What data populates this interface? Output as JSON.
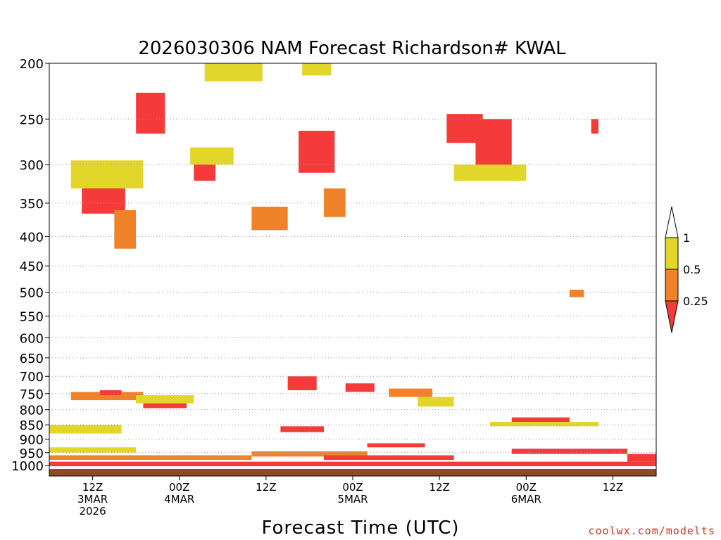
{
  "chart_data": {
    "type": "heatmap",
    "title": "2026030306 NAM Forecast Richardson# KWAL",
    "xlabel": "Forecast Time (UTC)",
    "ylabel": "",
    "y_axis": {
      "scale": "log-pressure",
      "range": [
        1000,
        200
      ],
      "ticks": [
        200,
        250,
        300,
        350,
        400,
        450,
        500,
        550,
        600,
        650,
        700,
        750,
        800,
        850,
        900,
        950,
        1000
      ],
      "tick_labels": [
        "200",
        "250",
        "300",
        "350",
        "400",
        "450",
        "500",
        "550",
        "600",
        "650",
        "700",
        "750",
        "800",
        "850",
        "900",
        "950",
        "1000"
      ]
    },
    "x_axis": {
      "units": "forecast hour",
      "range": [
        0,
        84
      ],
      "ticks": [
        {
          "hour": 6,
          "line1": "12Z",
          "line2": "3MAR",
          "line3": "2026"
        },
        {
          "hour": 18,
          "line1": "00Z",
          "line2": "4MAR",
          "line3": ""
        },
        {
          "hour": 30,
          "line1": "12Z",
          "line2": "",
          "line3": ""
        },
        {
          "hour": 42,
          "line1": "00Z",
          "line2": "5MAR",
          "line3": ""
        },
        {
          "hour": 54,
          "line1": "12Z",
          "line2": "",
          "line3": ""
        },
        {
          "hour": 66,
          "line1": "00Z",
          "line2": "6MAR",
          "line3": ""
        },
        {
          "hour": 78,
          "line1": "12Z",
          "line2": "",
          "line3": ""
        }
      ]
    },
    "grid": "dotted horizontal lines at pressure ticks",
    "colorbar": {
      "position": "right",
      "bins": [
        {
          "label_low": "0.5",
          "label_high": "1",
          "color": "#e2d62b"
        },
        {
          "label_low": "0.25",
          "label_high": "0.5",
          "color": "#f08229"
        },
        {
          "label_low": "",
          "label_high": "0.25",
          "color": "#f53a3a"
        }
      ],
      "labels": [
        "1",
        "0.5",
        "0.25"
      ]
    },
    "ground_color": "#8e4a25",
    "palette": {
      "yellow": "#e2d62b",
      "orange": "#f08229",
      "red": "#f53a3a"
    },
    "regions": [
      {
        "name": "low level stable layer",
        "value_class": "red",
        "h0": 0,
        "h1": 84,
        "p_top": 985,
        "p_bot": 1003
      },
      {
        "name": "upper jet 1",
        "value_class": "red",
        "h0": 4.5,
        "h1": 10.5,
        "p_top": 315,
        "p_bot": 365
      },
      {
        "name": "upper jet 1 rim",
        "value_class": "yellow",
        "h0": 3,
        "h1": 13,
        "p_top": 295,
        "p_bot": 330
      },
      {
        "name": "upper jet 1 mid",
        "value_class": "orange",
        "h0": 9,
        "h1": 12,
        "p_top": 360,
        "p_bot": 420
      },
      {
        "name": "upper jet 2",
        "value_class": "red",
        "h0": 12,
        "h1": 16,
        "p_top": 225,
        "p_bot": 265
      },
      {
        "name": "upper jet 3",
        "value_class": "yellow",
        "h0": 19.5,
        "h1": 25.5,
        "p_top": 280,
        "p_bot": 300
      },
      {
        "name": "upper jet 3 core",
        "value_class": "red",
        "h0": 20,
        "h1": 23,
        "p_top": 300,
        "p_bot": 320
      },
      {
        "name": "upper jet 4",
        "value_class": "orange",
        "h0": 28,
        "h1": 33,
        "p_top": 355,
        "p_bot": 390
      },
      {
        "name": "upper jet 5",
        "value_class": "red",
        "h0": 34.5,
        "h1": 39.5,
        "p_top": 262,
        "p_bot": 310
      },
      {
        "name": "upper jet 5 rim",
        "value_class": "orange",
        "h0": 38,
        "h1": 41,
        "p_top": 330,
        "p_bot": 370
      },
      {
        "name": "upper jet 6",
        "value_class": "red",
        "h0": 55,
        "h1": 60,
        "p_top": 245,
        "p_bot": 275
      },
      {
        "name": "upper jet 6b",
        "value_class": "red",
        "h0": 59,
        "h1": 64,
        "p_top": 250,
        "p_bot": 310
      },
      {
        "name": "upper jet 6 rim",
        "value_class": "yellow",
        "h0": 56,
        "h1": 66,
        "p_top": 300,
        "p_bot": 320
      },
      {
        "name": "top layer",
        "value_class": "yellow",
        "h0": 21.5,
        "h1": 29.5,
        "p_top": 200,
        "p_bot": 215
      },
      {
        "name": "top layer 2",
        "value_class": "yellow",
        "h0": 35,
        "h1": 39,
        "p_top": 200,
        "p_bot": 210
      },
      {
        "name": "mid cloud edge",
        "value_class": "orange",
        "h0": 3,
        "h1": 13,
        "p_top": 745,
        "p_bot": 770
      },
      {
        "name": "mid cloud edge red",
        "value_class": "red",
        "h0": 7,
        "h1": 10,
        "p_top": 740,
        "p_bot": 755
      },
      {
        "name": "mid layer 2",
        "value_class": "red",
        "h0": 13,
        "h1": 19,
        "p_top": 775,
        "p_bot": 795
      },
      {
        "name": "mid layer 2 rim",
        "value_class": "yellow",
        "h0": 12,
        "h1": 20,
        "p_top": 755,
        "p_bot": 780
      },
      {
        "name": "mid layer 3",
        "value_class": "red",
        "h0": 33,
        "h1": 37,
        "p_top": 700,
        "p_bot": 740
      },
      {
        "name": "mid layer 4",
        "value_class": "red",
        "h0": 41,
        "h1": 45,
        "p_top": 720,
        "p_bot": 745
      },
      {
        "name": "mid layer 5",
        "value_class": "orange",
        "h0": 47,
        "h1": 53,
        "p_top": 735,
        "p_bot": 760
      },
      {
        "name": "mid layer 6",
        "value_class": "yellow",
        "h0": 51,
        "h1": 56,
        "p_top": 760,
        "p_bot": 790
      },
      {
        "name": "mid layer 7",
        "value_class": "red",
        "h0": 64,
        "h1": 72,
        "p_top": 825,
        "p_bot": 840
      },
      {
        "name": "mid layer 7 rim",
        "value_class": "yellow",
        "h0": 61,
        "h1": 76,
        "p_top": 840,
        "p_bot": 855
      },
      {
        "name": "low layer A",
        "value_class": "red",
        "h0": 32,
        "h1": 38,
        "p_top": 855,
        "p_bot": 875
      },
      {
        "name": "low layer B",
        "value_class": "red",
        "h0": 44,
        "h1": 52,
        "p_top": 915,
        "p_bot": 930
      },
      {
        "name": "low layer C",
        "value_class": "red",
        "h0": 64,
        "h1": 80,
        "p_top": 935,
        "p_bot": 955
      },
      {
        "name": "low layer D",
        "value_class": "orange",
        "h0": 28,
        "h1": 44,
        "p_top": 945,
        "p_bot": 965
      },
      {
        "name": "low layer E",
        "value_class": "red",
        "h0": 38,
        "h1": 56,
        "p_top": 960,
        "p_bot": 978
      },
      {
        "name": "low layer F",
        "value_class": "orange",
        "h0": 0,
        "h1": 28,
        "p_top": 960,
        "p_bot": 978
      },
      {
        "name": "low layer G",
        "value_class": "yellow",
        "h0": 0,
        "h1": 12,
        "p_top": 930,
        "p_bot": 950
      },
      {
        "name": "low layer H",
        "value_class": "yellow",
        "h0": 0,
        "h1": 10,
        "p_top": 850,
        "p_bot": 880
      },
      {
        "name": "right upper",
        "value_class": "orange",
        "h0": 72,
        "h1": 74,
        "p_top": 495,
        "p_bot": 510
      },
      {
        "name": "right upper 2",
        "value_class": "red",
        "h0": 75,
        "h1": 76,
        "p_top": 250,
        "p_bot": 265
      },
      {
        "name": "right low",
        "value_class": "red",
        "h0": 80,
        "h1": 84,
        "p_top": 955,
        "p_bot": 985
      }
    ]
  },
  "colorbar_labels": {
    "top": "1",
    "mid": "0.5",
    "low": "0.25"
  },
  "credit": "coolwx.com/modelts"
}
